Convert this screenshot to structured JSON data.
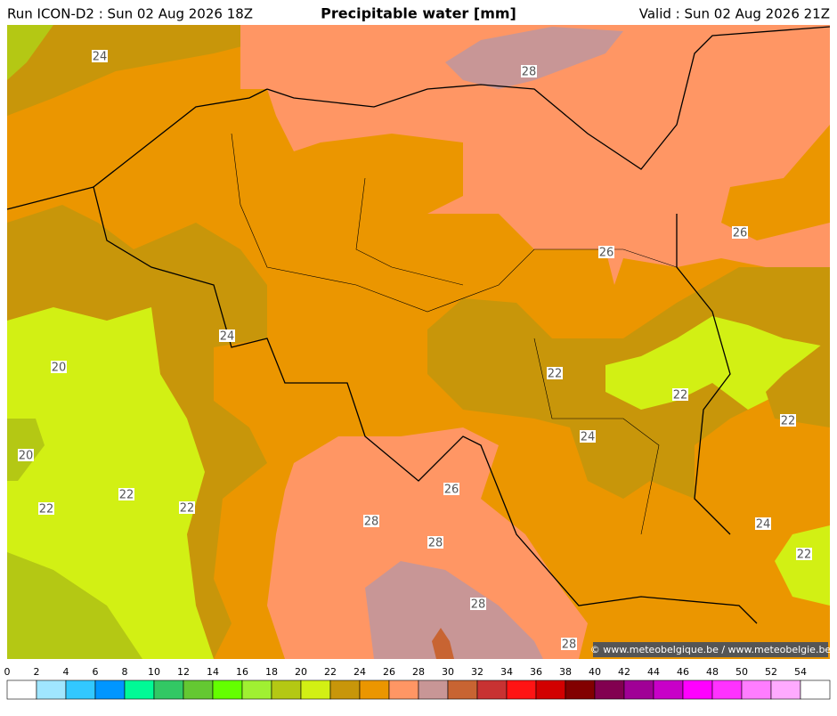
{
  "header": {
    "run": "Run ICON-D2 : Sun 02 Aug 2026 18Z",
    "title": "Precipitable water [mm]",
    "valid": "Valid : Sun 02 Aug 2026 21Z"
  },
  "contour_labels": [
    24,
    28,
    26,
    26,
    24,
    20,
    22,
    22,
    22,
    24,
    20,
    26,
    22,
    22,
    22,
    28,
    24,
    28,
    22,
    28,
    28
  ],
  "legend": {
    "ticks": [
      0,
      2,
      4,
      6,
      8,
      10,
      12,
      14,
      16,
      18,
      20,
      22,
      24,
      26,
      28,
      30,
      32,
      34,
      36,
      38,
      40,
      42,
      44,
      46,
      48,
      50,
      52,
      54
    ],
    "colors": [
      "#ffffff",
      "#a0e6ff",
      "#32c8ff",
      "#0096ff",
      "#00fa96",
      "#32c864",
      "#64c832",
      "#64ff00",
      "#a0f032",
      "#b4c814",
      "#d2f014",
      "#c8960a",
      "#eb9600",
      "#ff9664",
      "#c89696",
      "#c86432",
      "#c83232",
      "#ff1414",
      "#d20000",
      "#820000",
      "#820050",
      "#a00096",
      "#c800c8",
      "#ff00ff",
      "#ff32ff",
      "#ff7dff",
      "#ffaaff",
      "#ffffff"
    ]
  },
  "copyright": "© www.meteobelgique.be / www.meteobelgie.be"
}
